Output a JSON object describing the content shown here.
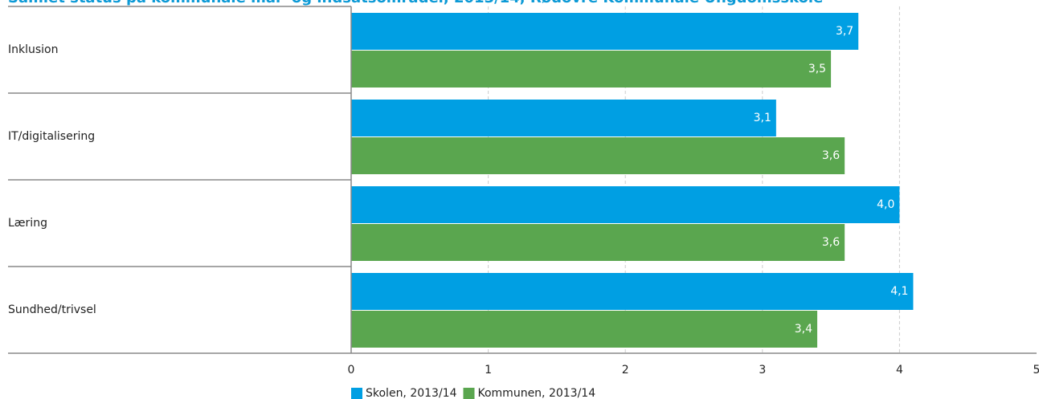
{
  "chart_data": {
    "type": "bar",
    "orientation": "horizontal",
    "title": "Samlet status på kommunale mål- og indsatsområder, 2013/14, Rødovre Kommunale Ungdomsskole",
    "categories": [
      "Inklusion",
      "IT/digitalisering",
      "Læring",
      "Sundhed/trivsel"
    ],
    "series": [
      {
        "name": "Skolen, 2013/14",
        "color": "#009fe3",
        "values": [
          3.7,
          3.1,
          4.0,
          4.1
        ],
        "value_labels": [
          "3,7",
          "3,1",
          "4,0",
          "4,1"
        ]
      },
      {
        "name": "Kommunen, 2013/14",
        "color": "#5aa64f",
        "values": [
          3.5,
          3.6,
          3.6,
          3.4
        ],
        "value_labels": [
          "3,5",
          "3,6",
          "3,6",
          "3,4"
        ]
      }
    ],
    "xlim": [
      0,
      5
    ],
    "xticks": [
      0,
      1,
      2,
      3,
      4,
      5
    ],
    "grid": true,
    "legend": "bottom"
  }
}
